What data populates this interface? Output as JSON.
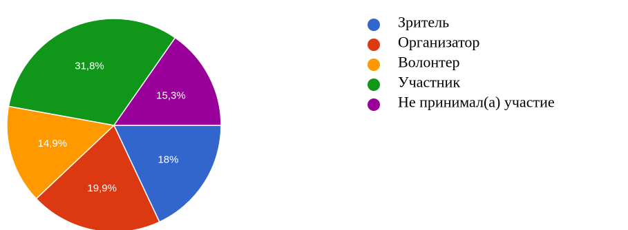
{
  "chart_data": {
    "type": "pie",
    "slices": [
      {
        "name": "Зритель",
        "label": "18%",
        "value": 18.0,
        "color": "#3366cc"
      },
      {
        "name": "Организатор",
        "label": "19,9%",
        "value": 19.9,
        "color": "#dc3912"
      },
      {
        "name": "Волонтер",
        "label": "14,9%",
        "value": 14.9,
        "color": "#ff9900"
      },
      {
        "name": "Участник",
        "label": "31,8%",
        "value": 31.8,
        "color": "#109618"
      },
      {
        "name": "Не принимал(а) участие",
        "label": "15,3%",
        "value": 15.3,
        "color": "#990099"
      }
    ],
    "legend_position": "right"
  }
}
